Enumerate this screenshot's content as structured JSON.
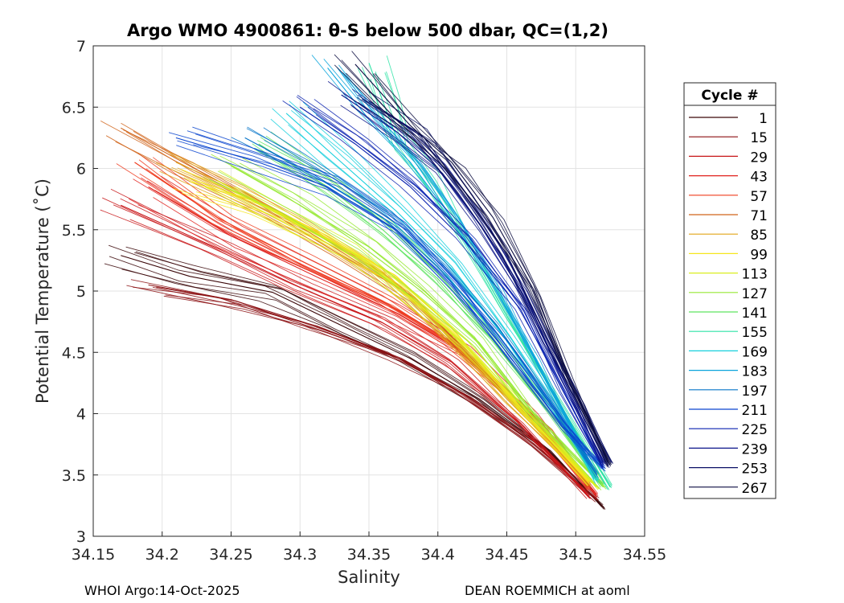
{
  "chart_data": {
    "type": "line",
    "title": "Argo WMO 4900861: θ-S below 500 dbar,  QC=(1,2)",
    "xlabel": "Salinity",
    "ylabel": "Potential Temperature (˚C)",
    "xlim": [
      34.15,
      34.55
    ],
    "ylim": [
      3,
      7
    ],
    "xticks": [
      34.15,
      34.2,
      34.25,
      34.3,
      34.35,
      34.4,
      34.45,
      34.5,
      34.55
    ],
    "yticks": [
      3,
      3.5,
      4,
      4.5,
      5,
      5.5,
      6,
      6.5,
      7
    ],
    "grid": true,
    "legend": {
      "title": "Cycle #",
      "placement": "outside-right",
      "entries": [
        {
          "label": "1",
          "color": "#3a0608"
        },
        {
          "label": "15",
          "color": "#8b0f12"
        },
        {
          "label": "29",
          "color": "#c81518"
        },
        {
          "label": "43",
          "color": "#e0211c"
        },
        {
          "label": "57",
          "color": "#ef3b1e"
        },
        {
          "label": "71",
          "color": "#d0641a"
        },
        {
          "label": "85",
          "color": "#e2a519"
        },
        {
          "label": "99",
          "color": "#f5e61d"
        },
        {
          "label": "113",
          "color": "#d9ee1f"
        },
        {
          "label": "127",
          "color": "#97e934"
        },
        {
          "label": "141",
          "color": "#5ee460"
        },
        {
          "label": "155",
          "color": "#2fe3a6"
        },
        {
          "label": "169",
          "color": "#16cfdd"
        },
        {
          "label": "183",
          "color": "#0aa4dc"
        },
        {
          "label": "197",
          "color": "#0775c9"
        },
        {
          "label": "211",
          "color": "#0b45cf"
        },
        {
          "label": "225",
          "color": "#0a22b0"
        },
        {
          "label": "239",
          "color": "#0a148a"
        },
        {
          "label": "253",
          "color": "#0b1066"
        },
        {
          "label": "267",
          "color": "#0b0c40"
        }
      ]
    },
    "series": [
      {
        "name": "1",
        "points": [
          [
            34.17,
            5.29
          ],
          [
            34.22,
            5.12
          ],
          [
            34.28,
            4.99
          ],
          [
            34.33,
            4.72
          ],
          [
            34.38,
            4.45
          ],
          [
            34.43,
            4.12
          ],
          [
            34.48,
            3.7
          ],
          [
            34.52,
            3.24
          ]
        ]
      },
      {
        "name": "15",
        "points": [
          [
            34.19,
            5.05
          ],
          [
            34.25,
            4.93
          ],
          [
            34.31,
            4.72
          ],
          [
            34.37,
            4.46
          ],
          [
            34.42,
            4.15
          ],
          [
            34.47,
            3.75
          ],
          [
            34.515,
            3.3
          ]
        ]
      },
      {
        "name": "29",
        "points": [
          [
            34.17,
            5.7
          ],
          [
            34.24,
            5.35
          ],
          [
            34.3,
            5.03
          ],
          [
            34.36,
            4.74
          ],
          [
            34.41,
            4.42
          ],
          [
            34.46,
            3.92
          ],
          [
            34.51,
            3.33
          ]
        ]
      },
      {
        "name": "43",
        "points": [
          [
            34.19,
            5.85
          ],
          [
            34.25,
            5.45
          ],
          [
            34.31,
            5.15
          ],
          [
            34.37,
            4.82
          ],
          [
            34.42,
            4.49
          ],
          [
            34.47,
            3.98
          ],
          [
            34.515,
            3.34
          ]
        ]
      },
      {
        "name": "57",
        "points": [
          [
            34.18,
            6.05
          ],
          [
            34.24,
            5.6
          ],
          [
            34.3,
            5.25
          ],
          [
            34.36,
            4.92
          ],
          [
            34.41,
            4.58
          ],
          [
            34.46,
            4.05
          ],
          [
            34.51,
            3.38
          ]
        ]
      },
      {
        "name": "71",
        "points": [
          [
            34.17,
            6.33
          ],
          [
            34.22,
            6.02
          ],
          [
            34.28,
            5.66
          ],
          [
            34.33,
            5.32
          ],
          [
            34.38,
            4.96
          ],
          [
            34.43,
            4.4
          ],
          [
            34.48,
            3.86
          ],
          [
            34.51,
            3.42
          ]
        ]
      },
      {
        "name": "85",
        "points": [
          [
            34.21,
            6.05
          ],
          [
            34.26,
            5.8
          ],
          [
            34.31,
            5.5
          ],
          [
            34.36,
            5.15
          ],
          [
            34.4,
            4.72
          ],
          [
            34.45,
            4.12
          ],
          [
            34.51,
            3.44
          ]
        ]
      },
      {
        "name": "99",
        "points": [
          [
            34.22,
            5.92
          ],
          [
            34.27,
            5.72
          ],
          [
            34.32,
            5.45
          ],
          [
            34.37,
            5.12
          ],
          [
            34.41,
            4.7
          ],
          [
            34.46,
            4.05
          ],
          [
            34.51,
            3.43
          ]
        ]
      },
      {
        "name": "113",
        "points": [
          [
            34.24,
            5.9
          ],
          [
            34.29,
            5.6
          ],
          [
            34.34,
            5.3
          ],
          [
            34.38,
            4.95
          ],
          [
            34.42,
            4.55
          ],
          [
            34.47,
            3.95
          ],
          [
            34.515,
            3.4
          ]
        ]
      },
      {
        "name": "127",
        "points": [
          [
            34.25,
            6.02
          ],
          [
            34.3,
            5.7
          ],
          [
            34.35,
            5.36
          ],
          [
            34.39,
            5.0
          ],
          [
            34.43,
            4.58
          ],
          [
            34.47,
            4.0
          ],
          [
            34.52,
            3.4
          ]
        ]
      },
      {
        "name": "141",
        "points": [
          [
            34.27,
            6.2
          ],
          [
            34.32,
            5.85
          ],
          [
            34.36,
            5.5
          ],
          [
            34.4,
            5.1
          ],
          [
            34.44,
            4.6
          ],
          [
            34.48,
            4.02
          ],
          [
            34.52,
            3.42
          ]
        ]
      },
      {
        "name": "155",
        "points": [
          [
            34.35,
            6.86
          ],
          [
            34.36,
            6.55
          ],
          [
            34.37,
            6.25
          ],
          [
            34.39,
            5.95
          ],
          [
            34.42,
            5.4
          ],
          [
            34.45,
            4.8
          ],
          [
            34.49,
            4.05
          ],
          [
            34.525,
            3.4
          ]
        ]
      },
      {
        "name": "169",
        "points": [
          [
            34.29,
            6.45
          ],
          [
            34.33,
            6.05
          ],
          [
            34.37,
            5.65
          ],
          [
            34.41,
            5.2
          ],
          [
            34.45,
            4.6
          ],
          [
            34.49,
            3.95
          ],
          [
            34.515,
            3.45
          ]
        ]
      },
      {
        "name": "183",
        "points": [
          [
            34.32,
            6.82
          ],
          [
            34.35,
            6.4
          ],
          [
            34.38,
            6.05
          ],
          [
            34.41,
            5.6
          ],
          [
            34.44,
            5.05
          ],
          [
            34.47,
            4.45
          ],
          [
            34.51,
            3.6
          ]
        ]
      },
      {
        "name": "197",
        "points": [
          [
            34.26,
            6.25
          ],
          [
            34.31,
            5.95
          ],
          [
            34.36,
            5.6
          ],
          [
            34.4,
            5.2
          ],
          [
            34.44,
            4.7
          ],
          [
            34.48,
            4.1
          ],
          [
            34.515,
            3.5
          ]
        ]
      },
      {
        "name": "211",
        "points": [
          [
            34.21,
            6.25
          ],
          [
            34.27,
            6.05
          ],
          [
            34.32,
            5.85
          ],
          [
            34.37,
            5.5
          ],
          [
            34.41,
            5.05
          ],
          [
            34.45,
            4.5
          ],
          [
            34.49,
            3.9
          ],
          [
            34.52,
            3.55
          ]
        ]
      },
      {
        "name": "225",
        "points": [
          [
            34.3,
            6.5
          ],
          [
            34.34,
            6.2
          ],
          [
            34.38,
            5.85
          ],
          [
            34.42,
            5.4
          ],
          [
            34.46,
            4.85
          ],
          [
            34.49,
            4.2
          ],
          [
            34.52,
            3.58
          ]
        ]
      },
      {
        "name": "239",
        "points": [
          [
            34.33,
            6.6
          ],
          [
            34.37,
            6.3
          ],
          [
            34.4,
            6.0
          ],
          [
            34.43,
            5.55
          ],
          [
            34.46,
            5.0
          ],
          [
            34.49,
            4.3
          ],
          [
            34.52,
            3.6
          ]
        ]
      },
      {
        "name": "253",
        "points": [
          [
            34.35,
            6.55
          ],
          [
            34.39,
            6.25
          ],
          [
            34.42,
            5.8
          ],
          [
            34.45,
            5.3
          ],
          [
            34.48,
            4.6
          ],
          [
            34.505,
            4.05
          ],
          [
            34.525,
            3.58
          ]
        ]
      },
      {
        "name": "267",
        "points": [
          [
            34.34,
            6.85
          ],
          [
            34.38,
            6.35
          ],
          [
            34.41,
            6.05
          ],
          [
            34.44,
            5.6
          ],
          [
            34.47,
            5.0
          ],
          [
            34.495,
            4.3
          ],
          [
            34.525,
            3.58
          ]
        ]
      }
    ]
  },
  "footer": {
    "left": "WHOI Argo:14-Oct-2025",
    "right": "DEAN ROEMMICH at aoml"
  }
}
